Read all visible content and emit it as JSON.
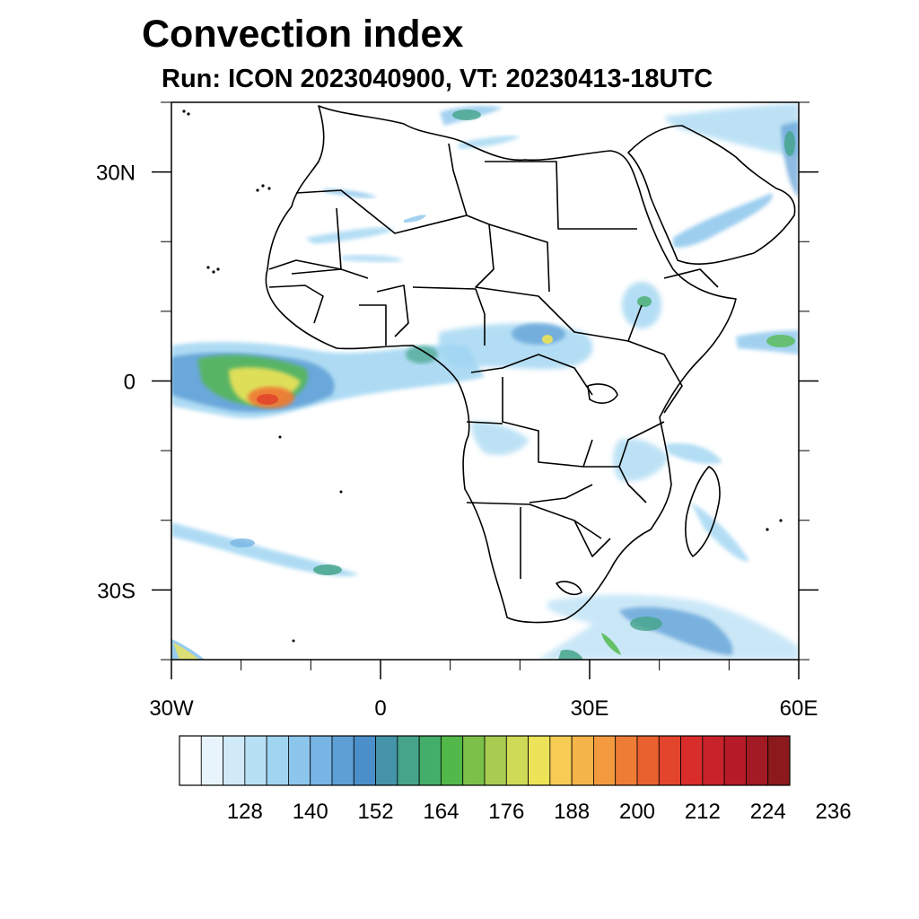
{
  "title": "Convection index",
  "subtitle": "Run: ICON 2023040900,  VT: 20230413-18UTC",
  "map": {
    "region": "Africa",
    "lon_range": [
      -30,
      60
    ],
    "lat_range": [
      -40,
      40
    ],
    "x_ticks": [
      {
        "lon": -30,
        "label": "30W"
      },
      {
        "lon": 0,
        "label": "0"
      },
      {
        "lon": 30,
        "label": "30E"
      },
      {
        "lon": 60,
        "label": "60E"
      }
    ],
    "y_ticks": [
      {
        "lat": 30,
        "label": "30N"
      },
      {
        "lat": 0,
        "label": "0"
      },
      {
        "lat": -30,
        "label": "30S"
      }
    ],
    "minor_lon_step": 10,
    "minor_lat_step": 10
  },
  "colorbar": {
    "colors": [
      "#ffffff",
      "#e8f4fb",
      "#d0eaf8",
      "#b8e0f5",
      "#a0d5f2",
      "#8cc6ec",
      "#76b5e4",
      "#5e9fd6",
      "#4a8fca",
      "#4493a8",
      "#45a48a",
      "#43ad6a",
      "#52b84a",
      "#7cc04a",
      "#a8cc50",
      "#cfdb56",
      "#ede358",
      "#f6cc55",
      "#f4b449",
      "#f39a3f",
      "#ee7c35",
      "#e8612f",
      "#e2452b",
      "#d82d2b",
      "#c8222a",
      "#b61c27",
      "#a21a23",
      "#8c1a1c"
    ],
    "labels": [
      "128",
      "140",
      "152",
      "164",
      "176",
      "188",
      "200",
      "212",
      "224",
      "236"
    ]
  },
  "colors": {
    "light_blue": "#a0d5f2",
    "mid_blue": "#5e9fd6",
    "teal": "#45a48a",
    "green": "#52b84a",
    "yellow": "#ede358",
    "orange": "#f39a3f",
    "red": "#e2452b"
  }
}
